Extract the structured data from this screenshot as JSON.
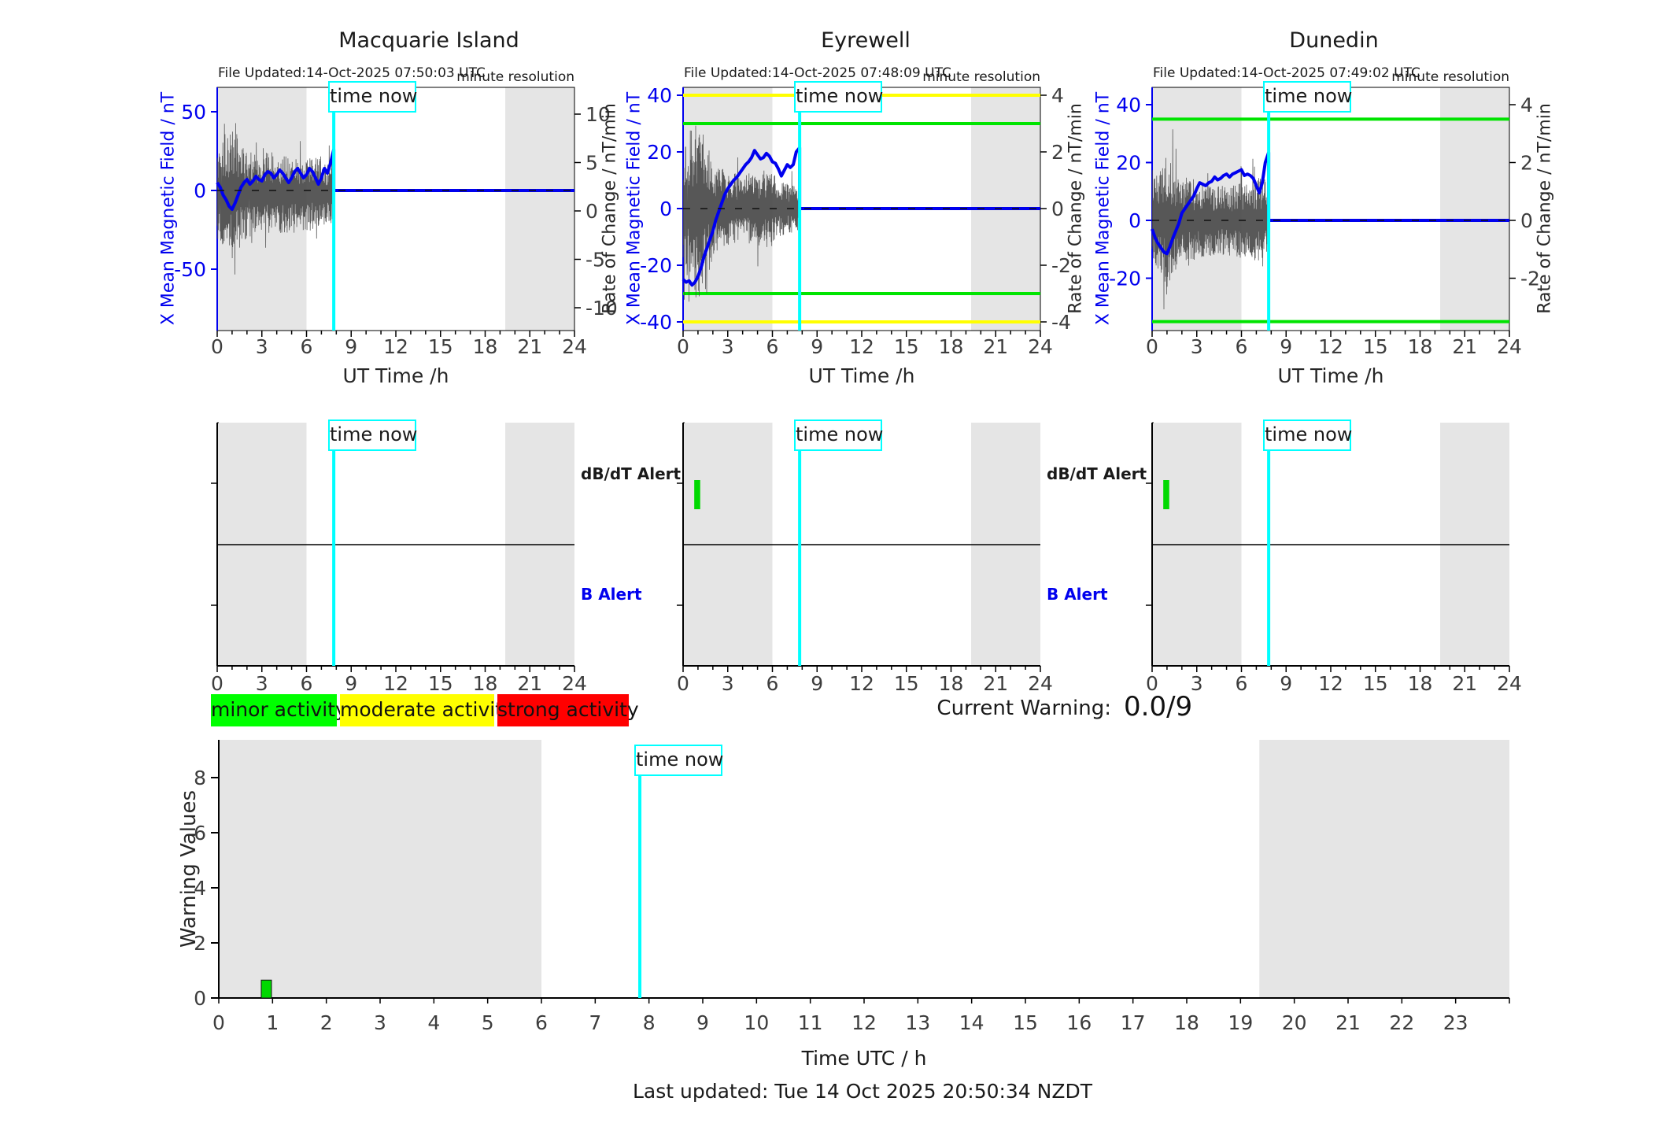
{
  "page": {
    "time_now_label": "time now",
    "minute_resolution_label": "minute resolution",
    "current_warning_label": "Current Warning:",
    "current_warning_value": "0.0/9",
    "last_updated": "Last updated: Tue 14 Oct 2025 20:50:34 NZDT"
  },
  "alert_labels": {
    "dbdt": "dB/dT Alert",
    "b": "B Alert"
  },
  "legend": [
    {
      "label": "minor activity",
      "color": "#00ff00"
    },
    {
      "label": "moderate activity",
      "color": "#ffff00"
    },
    {
      "label": "strong activity",
      "color": "#ff0000"
    }
  ],
  "colors": {
    "mean_field": "#0000ee",
    "noise": "#474747",
    "band": "#e5e5e5",
    "time_now": "#00ffff",
    "green_threshold": "#00e400",
    "yellow_threshold": "#ffff00",
    "marker_green": "#00d900",
    "tick_text": "#3d3d3d",
    "blue_text": "#0000ee"
  },
  "chart_data": {
    "type": "line",
    "stations": [
      {
        "name": "Macquarie Island",
        "file_updated": "File Updated:14-Oct-2025 07:50:03 UTC",
        "ylabel": "X Mean Magnetic Field / nT",
        "ylabel_right": "Rate of Change / nT/min",
        "xlabel": "UT Time /h",
        "xlim": [
          0,
          24
        ],
        "xticks": [
          0,
          3,
          6,
          9,
          12,
          15,
          18,
          21,
          24
        ],
        "ylim": [
          -89,
          65
        ],
        "yticks": [
          50,
          0,
          -50
        ],
        "right_ticks": [
          10,
          5,
          0,
          -5,
          -10
        ],
        "thresholds": [],
        "time_now_h": 7.83,
        "shaded_hours": [
          [
            0,
            6
          ],
          [
            19.35,
            24
          ]
        ],
        "mean_field_series": [
          [
            0,
            5
          ],
          [
            0.2,
            2
          ],
          [
            0.4,
            -3
          ],
          [
            0.6,
            -6
          ],
          [
            0.8,
            -10
          ],
          [
            1.0,
            -12
          ],
          [
            1.2,
            -8
          ],
          [
            1.4,
            -3
          ],
          [
            1.6,
            2
          ],
          [
            1.8,
            5
          ],
          [
            2.0,
            7
          ],
          [
            2.2,
            4
          ],
          [
            2.4,
            6
          ],
          [
            2.6,
            9
          ],
          [
            2.8,
            7
          ],
          [
            3.0,
            6
          ],
          [
            3.2,
            10
          ],
          [
            3.4,
            12
          ],
          [
            3.6,
            11
          ],
          [
            3.8,
            8
          ],
          [
            4.0,
            10
          ],
          [
            4.2,
            13
          ],
          [
            4.4,
            11
          ],
          [
            4.6,
            8
          ],
          [
            4.8,
            5
          ],
          [
            5.0,
            8
          ],
          [
            5.2,
            12
          ],
          [
            5.4,
            14
          ],
          [
            5.6,
            11
          ],
          [
            5.8,
            8
          ],
          [
            6.0,
            10
          ],
          [
            6.2,
            14
          ],
          [
            6.4,
            12
          ],
          [
            6.6,
            8
          ],
          [
            6.8,
            4
          ],
          [
            7.0,
            8
          ],
          [
            7.2,
            14
          ],
          [
            7.4,
            11
          ],
          [
            7.6,
            17
          ],
          [
            7.83,
            26
          ]
        ],
        "noise_envelope": [
          [
            0,
            32
          ],
          [
            0.5,
            38
          ],
          [
            1,
            42
          ],
          [
            1.3,
            38
          ],
          [
            2,
            28
          ],
          [
            3,
            25
          ],
          [
            3.5,
            28
          ],
          [
            4,
            25
          ],
          [
            5,
            26
          ],
          [
            5.5,
            24
          ],
          [
            6,
            24
          ],
          [
            7,
            22
          ],
          [
            7.83,
            18
          ]
        ],
        "noise_center": -2,
        "noise_seed": 11,
        "alert_marker": null
      },
      {
        "name": "Eyrewell",
        "file_updated": "File Updated:14-Oct-2025 07:48:09 UTC",
        "ylabel": "X Mean Magnetic Field / nT",
        "ylabel_right": "Rate of Change / nT/min",
        "xlabel": "UT Time /h",
        "xlim": [
          0,
          24
        ],
        "xticks": [
          0,
          3,
          6,
          9,
          12,
          15,
          18,
          21,
          24
        ],
        "ylim": [
          -43,
          43
        ],
        "yticks": [
          40,
          20,
          0,
          -20,
          -40
        ],
        "right_ticks": [
          4,
          2,
          0,
          -2,
          -4
        ],
        "thresholds": [
          {
            "value": 40,
            "color": "yellow"
          },
          {
            "value": -40,
            "color": "yellow"
          },
          {
            "value": 30,
            "color": "green"
          },
          {
            "value": -30,
            "color": "green"
          }
        ],
        "time_now_h": 7.83,
        "shaded_hours": [
          [
            0,
            6
          ],
          [
            19.35,
            24
          ]
        ],
        "mean_field_series": [
          [
            0,
            -25
          ],
          [
            0.2,
            -26
          ],
          [
            0.4,
            -25.5
          ],
          [
            0.6,
            -27
          ],
          [
            0.8,
            -26
          ],
          [
            1.0,
            -24
          ],
          [
            1.2,
            -21
          ],
          [
            1.4,
            -17
          ],
          [
            1.6,
            -14
          ],
          [
            1.8,
            -11
          ],
          [
            2.0,
            -8
          ],
          [
            2.2,
            -4
          ],
          [
            2.4,
            -1
          ],
          [
            2.6,
            2
          ],
          [
            2.8,
            5
          ],
          [
            3.0,
            7
          ],
          [
            3.2,
            8.5
          ],
          [
            3.4,
            10
          ],
          [
            3.6,
            11
          ],
          [
            3.8,
            12.5
          ],
          [
            4.0,
            14
          ],
          [
            4.2,
            15.5
          ],
          [
            4.4,
            16.5
          ],
          [
            4.6,
            18
          ],
          [
            4.8,
            20.5
          ],
          [
            5.0,
            19
          ],
          [
            5.2,
            17.5
          ],
          [
            5.4,
            18
          ],
          [
            5.6,
            19.5
          ],
          [
            5.8,
            18.5
          ],
          [
            6.0,
            16.5
          ],
          [
            6.2,
            16
          ],
          [
            6.4,
            14
          ],
          [
            6.6,
            11.5
          ],
          [
            6.8,
            13.5
          ],
          [
            7.0,
            15.5
          ],
          [
            7.2,
            14.5
          ],
          [
            7.4,
            15.5
          ],
          [
            7.6,
            20
          ],
          [
            7.83,
            21.5
          ]
        ],
        "noise_envelope": [
          [
            0,
            24
          ],
          [
            0.5,
            30
          ],
          [
            1,
            32
          ],
          [
            1.5,
            26
          ],
          [
            2,
            18
          ],
          [
            2.5,
            15
          ],
          [
            3,
            13
          ],
          [
            4,
            12
          ],
          [
            5,
            13
          ],
          [
            5.9,
            14
          ],
          [
            6.3,
            11
          ],
          [
            7,
            9
          ],
          [
            7.83,
            8
          ]
        ],
        "noise_center": 0,
        "noise_seed": 22,
        "alert_marker": {
          "row": "dbdt",
          "start_h": 0.75,
          "end_h": 1.15,
          "color_key": "marker_green"
        }
      },
      {
        "name": "Dunedin",
        "file_updated": "File Updated:14-Oct-2025 07:49:02 UTC",
        "ylabel": "X Mean Magnetic Field / nT",
        "ylabel_right": "Rate of Change / nT/min",
        "xlabel": "UT Time /h",
        "xlim": [
          0,
          24
        ],
        "xticks": [
          0,
          3,
          6,
          9,
          12,
          15,
          18,
          21,
          24
        ],
        "ylim": [
          -38,
          46
        ],
        "yticks": [
          40,
          20,
          0,
          -20
        ],
        "right_ticks": [
          4,
          2,
          0,
          -2
        ],
        "thresholds": [
          {
            "value": 35,
            "color": "green"
          },
          {
            "value": -35,
            "color": "green"
          }
        ],
        "time_now_h": 7.83,
        "shaded_hours": [
          [
            0,
            6
          ],
          [
            19.35,
            24
          ]
        ],
        "mean_field_series": [
          [
            0,
            -3
          ],
          [
            0.2,
            -6
          ],
          [
            0.4,
            -8
          ],
          [
            0.6,
            -9.5
          ],
          [
            0.8,
            -11
          ],
          [
            1.0,
            -11.5
          ],
          [
            1.2,
            -9
          ],
          [
            1.4,
            -6
          ],
          [
            1.6,
            -3.5
          ],
          [
            1.8,
            -1
          ],
          [
            2.0,
            2.5
          ],
          [
            2.2,
            4
          ],
          [
            2.4,
            5.5
          ],
          [
            2.6,
            7
          ],
          [
            2.8,
            8.5
          ],
          [
            3.0,
            11
          ],
          [
            3.2,
            13
          ],
          [
            3.4,
            12.5
          ],
          [
            3.6,
            12
          ],
          [
            3.8,
            13
          ],
          [
            4.0,
            13.5
          ],
          [
            4.2,
            15
          ],
          [
            4.4,
            14
          ],
          [
            4.6,
            14.5
          ],
          [
            4.8,
            15.5
          ],
          [
            5.0,
            16
          ],
          [
            5.2,
            15
          ],
          [
            5.4,
            16
          ],
          [
            5.6,
            16.5
          ],
          [
            5.8,
            17
          ],
          [
            6.0,
            17.5
          ],
          [
            6.2,
            15.5
          ],
          [
            6.4,
            16
          ],
          [
            6.6,
            15.5
          ],
          [
            6.8,
            14.5
          ],
          [
            7.0,
            12
          ],
          [
            7.2,
            9.5
          ],
          [
            7.4,
            13
          ],
          [
            7.6,
            20
          ],
          [
            7.83,
            23.5
          ]
        ],
        "noise_envelope": [
          [
            0,
            15
          ],
          [
            0.5,
            19
          ],
          [
            1,
            23
          ],
          [
            1.5,
            19
          ],
          [
            2,
            15
          ],
          [
            3,
            13
          ],
          [
            4,
            12
          ],
          [
            5,
            12
          ],
          [
            6,
            13
          ],
          [
            7,
            14
          ],
          [
            7.5,
            17
          ],
          [
            7.83,
            9
          ]
        ],
        "noise_center": 0,
        "noise_seed": 33,
        "alert_marker": {
          "row": "dbdt",
          "start_h": 0.75,
          "end_h": 1.15,
          "color_key": "marker_green"
        }
      }
    ],
    "alert_panels": {
      "xticks": [
        0,
        3,
        6,
        9,
        12,
        15,
        18,
        21,
        24
      ],
      "time_now_h": 7.83,
      "shaded_hours": [
        [
          0,
          6
        ],
        [
          19.35,
          24
        ]
      ]
    },
    "warning_chart": {
      "type": "bar",
      "ylabel": "Warning Values",
      "xlabel": "Time UTC / h",
      "xlim": [
        0,
        24
      ],
      "xticks": [
        0,
        1,
        2,
        3,
        4,
        5,
        6,
        7,
        8,
        9,
        10,
        11,
        12,
        13,
        14,
        15,
        16,
        17,
        18,
        19,
        20,
        21,
        22,
        23
      ],
      "ylim": [
        0,
        9.37
      ],
      "yticks": [
        0,
        2,
        4,
        6,
        8
      ],
      "bars": [
        {
          "start_h": 0.79,
          "end_h": 0.98,
          "value": 0.65,
          "color_key": "marker_green"
        }
      ],
      "time_now_h": 7.83,
      "shaded_hours": [
        [
          0,
          6
        ],
        [
          19.35,
          24
        ]
      ]
    }
  }
}
